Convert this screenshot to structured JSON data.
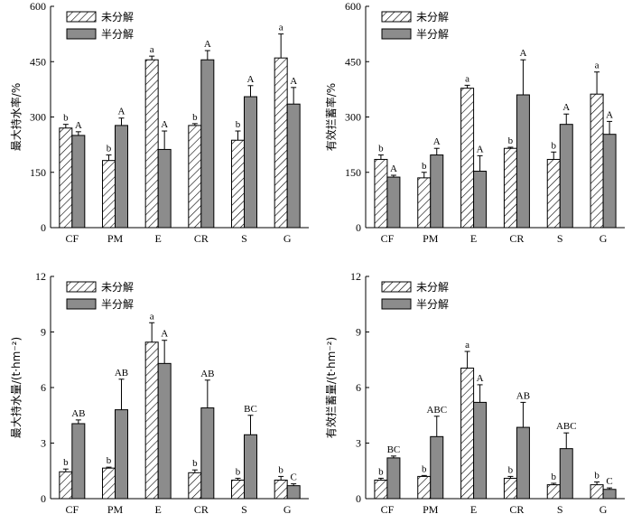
{
  "chart_data": [
    {
      "type": "bar",
      "ylabel": "最大持水率/%",
      "ylim": [
        0,
        600
      ],
      "yticks": [
        "0",
        "150",
        "300",
        "450",
        "600"
      ],
      "categories": [
        "CF",
        "PM",
        "E",
        "CR",
        "S",
        "G"
      ],
      "legend": "top-left",
      "series": [
        {
          "name": "未分解",
          "pattern": "hatch",
          "values": [
            270,
            182,
            455,
            277,
            237,
            460
          ],
          "errors": [
            10,
            15,
            10,
            5,
            25,
            65
          ],
          "letters": [
            "b",
            "b",
            "a",
            "b",
            "b",
            "a"
          ]
        },
        {
          "name": "半分解",
          "pattern": "gray",
          "color": "#8c8c8c",
          "values": [
            250,
            277,
            212,
            455,
            355,
            335
          ],
          "errors": [
            10,
            20,
            50,
            25,
            30,
            45
          ],
          "letters": [
            "A",
            "A",
            "A",
            "A",
            "A",
            "A"
          ]
        }
      ]
    },
    {
      "type": "bar",
      "ylabel": "有效拦蓄率/%",
      "ylim": [
        0,
        600
      ],
      "yticks": [
        "0",
        "150",
        "300",
        "450",
        "600"
      ],
      "categories": [
        "CF",
        "PM",
        "E",
        "CR",
        "S",
        "G"
      ],
      "legend": "top-left",
      "series": [
        {
          "name": "未分解",
          "pattern": "hatch",
          "values": [
            185,
            135,
            378,
            215,
            185,
            362
          ],
          "errors": [
            12,
            15,
            8,
            3,
            20,
            60
          ],
          "letters": [
            "b",
            "b",
            "a",
            "b",
            "b",
            "a"
          ]
        },
        {
          "name": "半分解",
          "pattern": "gray",
          "color": "#8c8c8c",
          "values": [
            137,
            197,
            153,
            360,
            280,
            253
          ],
          "errors": [
            5,
            18,
            42,
            95,
            28,
            35
          ],
          "letters": [
            "A",
            "A",
            "A",
            "A",
            "A",
            "A"
          ]
        }
      ]
    },
    {
      "type": "bar",
      "ylabel": "最大持水量/(t·hm⁻²)",
      "ylim": [
        0,
        12
      ],
      "yticks": [
        "0",
        "3",
        "6",
        "9",
        "12"
      ],
      "categories": [
        "CF",
        "PM",
        "E",
        "CR",
        "S",
        "G"
      ],
      "legend": "top-left",
      "series": [
        {
          "name": "未分解",
          "pattern": "hatch",
          "values": [
            1.45,
            1.65,
            8.45,
            1.4,
            1.0,
            1.0
          ],
          "errors": [
            0.15,
            0.05,
            1.05,
            0.15,
            0.1,
            0.2
          ],
          "letters": [
            "b",
            "b",
            "a",
            "b",
            "b",
            "b"
          ]
        },
        {
          "name": "半分解",
          "pattern": "gray",
          "color": "#8c8c8c",
          "values": [
            4.05,
            4.8,
            7.3,
            4.9,
            3.45,
            0.7
          ],
          "errors": [
            0.2,
            1.65,
            1.25,
            1.5,
            1.05,
            0.1
          ],
          "letters": [
            "AB",
            "AB",
            "A",
            "AB",
            "BC",
            "C"
          ]
        }
      ]
    },
    {
      "type": "bar",
      "ylabel": "有效拦蓄量/(t·hm⁻²)",
      "ylim": [
        0,
        12
      ],
      "yticks": [
        "0",
        "3",
        "6",
        "9",
        "12"
      ],
      "categories": [
        "CF",
        "PM",
        "E",
        "CR",
        "S",
        "G"
      ],
      "legend": "top-left",
      "series": [
        {
          "name": "未分解",
          "pattern": "hatch",
          "values": [
            1.0,
            1.2,
            7.05,
            1.1,
            0.75,
            0.75
          ],
          "errors": [
            0.1,
            0.05,
            0.9,
            0.1,
            0.08,
            0.15
          ],
          "letters": [
            "b",
            "b",
            "a",
            "b",
            "b",
            "b"
          ]
        },
        {
          "name": "半分解",
          "pattern": "gray",
          "color": "#8c8c8c",
          "values": [
            2.2,
            3.35,
            5.2,
            3.85,
            2.7,
            0.5
          ],
          "errors": [
            0.1,
            1.1,
            0.95,
            1.35,
            0.85,
            0.08
          ],
          "letters": [
            "BC",
            "ABC",
            "A",
            "AB",
            "ABC",
            "C"
          ]
        }
      ]
    }
  ]
}
